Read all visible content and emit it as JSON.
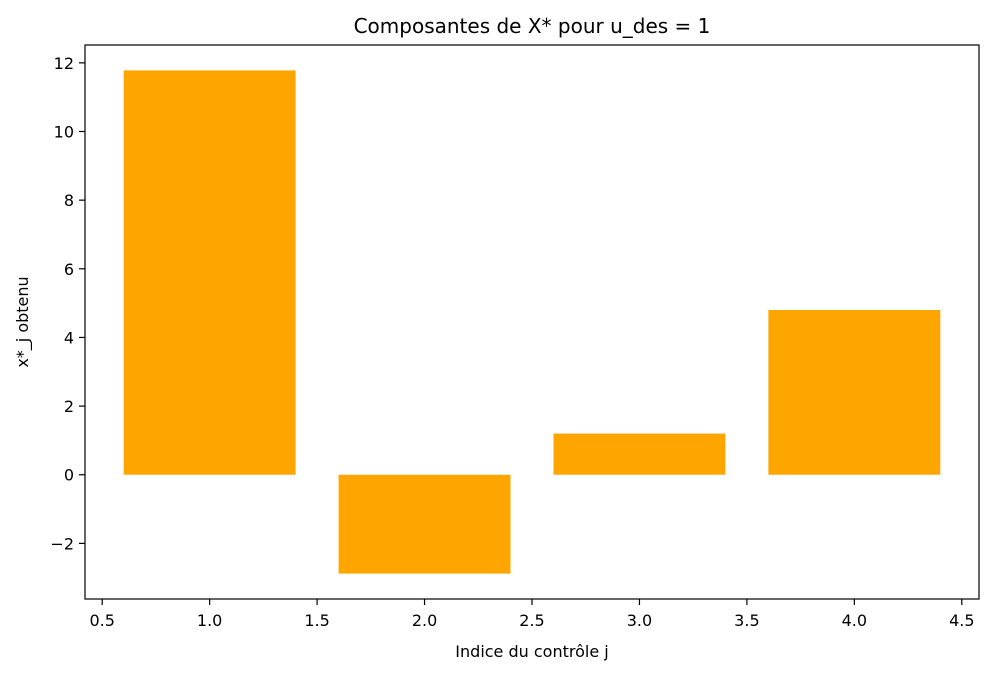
{
  "chart_data": {
    "type": "bar",
    "title": "Composantes de X* pour u_des = 1",
    "xlabel": "Indice du contrôle j",
    "ylabel": "x*_j obtenu",
    "x": [
      1,
      2,
      3,
      4
    ],
    "values": [
      11.78,
      -2.88,
      1.2,
      4.8
    ],
    "bar_width": 0.8,
    "bar_color": "#FFA500",
    "xlim": [
      0.42,
      4.58
    ],
    "ylim": [
      -3.62,
      12.52
    ],
    "xticks": [
      0.5,
      1.0,
      1.5,
      2.0,
      2.5,
      3.0,
      3.5,
      4.0,
      4.5
    ],
    "xtick_labels": [
      "0.5",
      "1.0",
      "1.5",
      "2.0",
      "2.5",
      "3.0",
      "3.5",
      "4.0",
      "4.5"
    ],
    "yticks": [
      -2,
      0,
      2,
      4,
      6,
      8,
      10,
      12
    ],
    "ytick_labels": [
      "−2",
      "0",
      "2",
      "4",
      "6",
      "8",
      "10",
      "12"
    ],
    "grid": false
  }
}
